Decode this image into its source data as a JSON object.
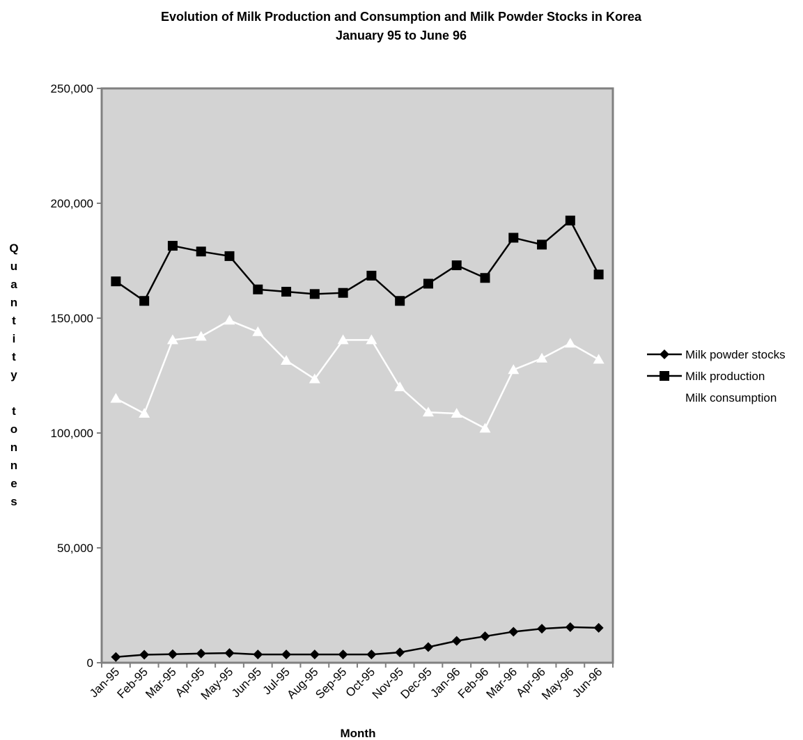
{
  "chart_data": {
    "type": "line",
    "title": "Evolution of Milk Production and Consumption and Milk Powder Stocks in Korea",
    "subtitle": "January 95 to June 96",
    "xlabel": "Month",
    "ylabel": "Quantity tonnes",
    "ylim": [
      0,
      250000
    ],
    "yticks": [
      0,
      50000,
      100000,
      150000,
      200000,
      250000
    ],
    "ytick_labels": [
      "0",
      "50,000",
      "100,000",
      "150,000",
      "200,000",
      "250,000"
    ],
    "grid": false,
    "legend_position": "right",
    "plot_background": "#d3d3d3",
    "categories": [
      "Jan-95",
      "Feb-95",
      "Mar-95",
      "Apr-95",
      "May-95",
      "Jun-95",
      "Jul-95",
      "Aug-95",
      "Sep-95",
      "Oct-95",
      "Nov-95",
      "Dec-95",
      "Jan-96",
      "Feb-96",
      "Mar-96",
      "Apr-96",
      "May-96",
      "Jun-96"
    ],
    "series": [
      {
        "name": "Milk powder stocks",
        "marker": "diamond",
        "color": "#000000",
        "values": [
          2500,
          3500,
          3700,
          4000,
          4200,
          3600,
          3600,
          3600,
          3600,
          3600,
          4500,
          6800,
          9500,
          11500,
          13500,
          14800,
          15500,
          15200
        ]
      },
      {
        "name": "Milk production",
        "marker": "square",
        "color": "#000000",
        "values": [
          166000,
          157500,
          181500,
          179000,
          177000,
          162500,
          161500,
          160500,
          161000,
          168500,
          157500,
          165000,
          173000,
          167500,
          185000,
          182000,
          192500,
          169000
        ]
      },
      {
        "name": "Milk consumption",
        "marker": "triangle",
        "color": "#ffffff",
        "values": [
          115000,
          108500,
          140500,
          142000,
          149000,
          144000,
          131500,
          123500,
          140500,
          140500,
          120000,
          109000,
          108500,
          102000,
          127500,
          132500,
          139000,
          132000
        ]
      }
    ]
  }
}
